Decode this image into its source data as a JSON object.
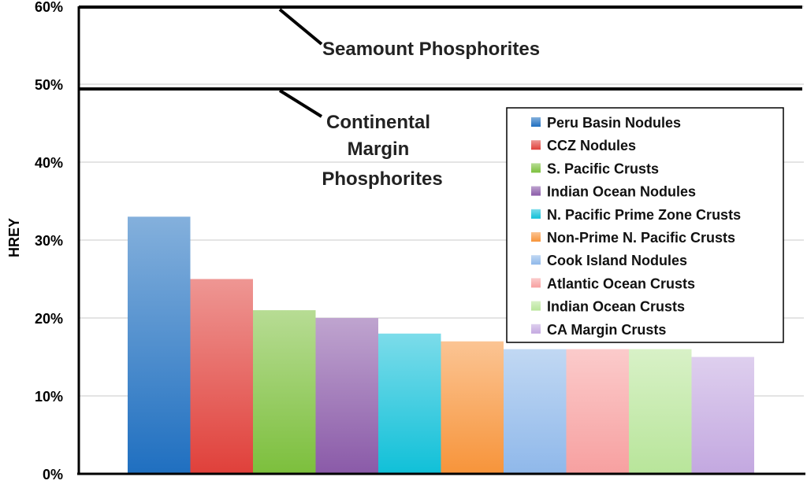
{
  "chart_data": {
    "type": "bar",
    "ylabel": "HREY",
    "xlabel": "",
    "ylim": [
      0,
      60
    ],
    "yticks": [
      "0%",
      "10%",
      "20%",
      "30%",
      "40%",
      "50%",
      "60%"
    ],
    "grid": true,
    "legend_position": "top-right",
    "series": [
      {
        "name": "Peru Basin Nodules",
        "value": 33,
        "color": "#1f6fc0"
      },
      {
        "name": "CCZ Nodules",
        "value": 25,
        "color": "#e0403a"
      },
      {
        "name": "S. Pacific Crusts",
        "value": 21,
        "color": "#7cbf3c"
      },
      {
        "name": "Indian Ocean Nodules",
        "value": 20,
        "color": "#8a5aa8"
      },
      {
        "name": "N. Pacific Prime Zone Crusts",
        "value": 18,
        "color": "#10c0d8"
      },
      {
        "name": "Non-Prime N. Pacific Crusts",
        "value": 17,
        "color": "#f7943a"
      },
      {
        "name": "Cook Island Nodules",
        "value": 16,
        "color": "#8fb8ea"
      },
      {
        "name": "Atlantic Ocean Crusts",
        "value": 16,
        "color": "#f7a0a0"
      },
      {
        "name": "Indian Ocean Crusts",
        "value": 16,
        "color": "#b8e59a"
      },
      {
        "name": "CA Margin Crusts",
        "value": 15,
        "color": "#c3a8e0"
      }
    ],
    "reference_lines": [
      {
        "label": "Seamount Phosphorites",
        "value": 60
      },
      {
        "label": "Continental Margin Phosphorites",
        "value": 49.5
      }
    ]
  },
  "annotations": {
    "seamount": "Seamount Phosphorites",
    "continental_lines": [
      "Continental",
      "Margin",
      "Phosphorites"
    ]
  }
}
